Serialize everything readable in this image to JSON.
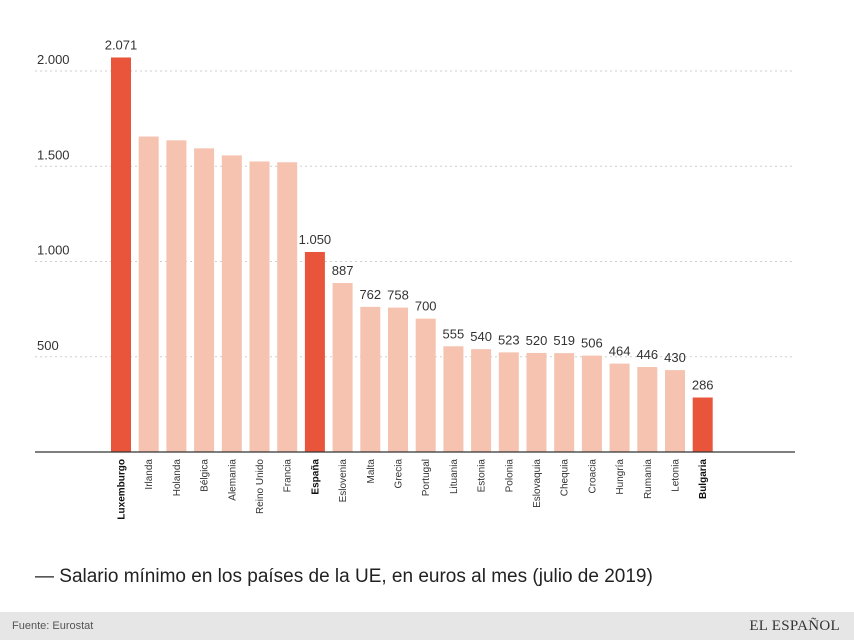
{
  "chart_data": {
    "type": "bar",
    "title": "— Salario mínimo en los países de la UE, en euros al mes (julio de 2019)",
    "source": "Fuente: Eurostat",
    "categories": [
      "Luxemburgo",
      "Irlanda",
      "Holanda",
      "Bélgica",
      "Alemania",
      "Reino Unido",
      "Francia",
      "España",
      "Eslovenia",
      "Malta",
      "Grecia",
      "Portugal",
      "Lituania",
      "Estonia",
      "Polonia",
      "Eslovaquia",
      "Chequia",
      "Croacia",
      "Hungría",
      "Rumania",
      "Letonia",
      "Bulgaria"
    ],
    "values": [
      2071,
      1656,
      1636,
      1594,
      1557,
      1525,
      1521,
      1050,
      887,
      762,
      758,
      700,
      555,
      540,
      523,
      520,
      519,
      506,
      464,
      446,
      430,
      286
    ],
    "value_labels": [
      "2.071",
      "",
      "",
      "",
      "",
      "",
      "",
      "1.050",
      "887",
      "762",
      "758",
      "700",
      "555",
      "540",
      "523",
      "520",
      "519",
      "506",
      "464",
      "446",
      "430",
      "286"
    ],
    "highlighted": [
      "Luxemburgo",
      "España",
      "Bulgaria"
    ],
    "y_ticks": [
      500,
      1000,
      1500,
      2000
    ],
    "y_tick_labels": [
      "500",
      "1.000",
      "1.500",
      "2.000"
    ],
    "ylim": [
      0,
      2200
    ],
    "xlabel": "",
    "ylabel": "",
    "grid": true,
    "colors": {
      "highlight": "#e8553a",
      "normal": "#f5c3b0",
      "grid": "#cfcfcf",
      "axis": "#333333"
    }
  },
  "branding": {
    "logo": "EL ESPAÑOL"
  }
}
